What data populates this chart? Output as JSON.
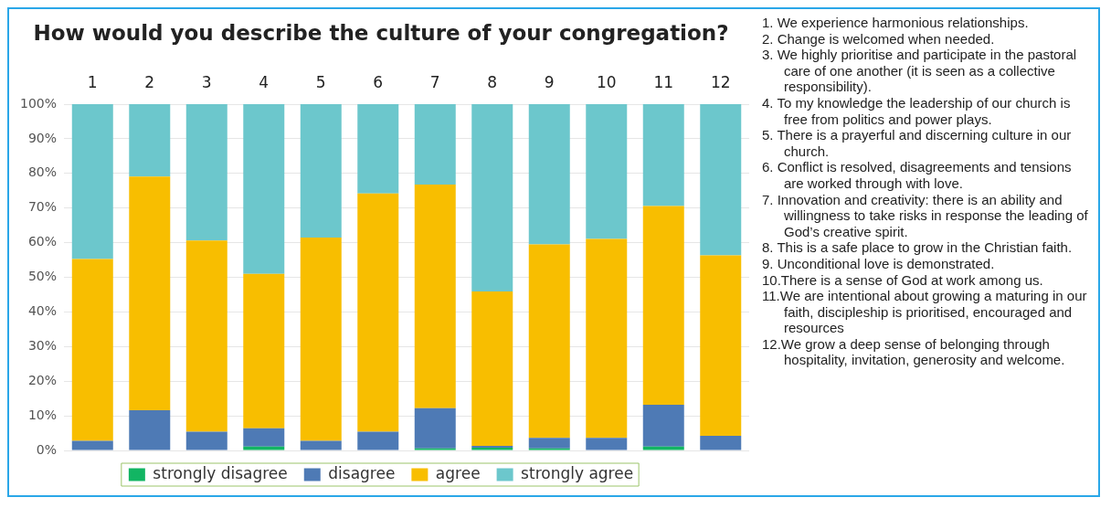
{
  "chart_data": {
    "type": "bar",
    "title": "How would you describe the culture of your congregation?",
    "categories": [
      "1",
      "2",
      "3",
      "4",
      "5",
      "6",
      "7",
      "8",
      "9",
      "10",
      "11",
      "12"
    ],
    "stacked": true,
    "series": [
      {
        "name": "strongly disagree",
        "color": "#12b563",
        "values": [
          0,
          0,
          0,
          1.1,
          0,
          0,
          0.6,
          0.8,
          0.6,
          0,
          1.1,
          0
        ]
      },
      {
        "name": "disagree",
        "color": "#4e7ab5",
        "values": [
          2.8,
          11.6,
          5.4,
          5.3,
          2.8,
          5.4,
          11.6,
          0.5,
          3.0,
          3.6,
          12.1,
          4.2
        ]
      },
      {
        "name": "agree",
        "color": "#f8be00",
        "values": [
          52.5,
          67.5,
          55.2,
          44.6,
          58.7,
          68.8,
          64.6,
          44.6,
          55.9,
          57.5,
          57.4,
          52.1
        ]
      },
      {
        "name": "strongly agree",
        "color": "#6cc7cc",
        "values": [
          44.7,
          20.9,
          39.4,
          49.0,
          38.5,
          25.8,
          23.2,
          54.1,
          40.5,
          38.9,
          29.4,
          43.7
        ]
      }
    ],
    "ylim": [
      0,
      100
    ],
    "yticks": [
      {
        "value": 0,
        "label": "0%"
      },
      {
        "value": 10,
        "label": "10%"
      },
      {
        "value": 20,
        "label": "20%"
      },
      {
        "value": 30,
        "label": "30%"
      },
      {
        "value": 40,
        "label": "40%"
      },
      {
        "value": 50,
        "label": "50%"
      },
      {
        "value": 60,
        "label": "60%"
      },
      {
        "value": 70,
        "label": "70%"
      },
      {
        "value": 80,
        "label": "80%"
      },
      {
        "value": 90,
        "label": "90%"
      },
      {
        "value": 100,
        "label": "100%"
      }
    ],
    "grid": "y",
    "legend": "bottom",
    "annotations": [
      "1. We experience harmonious relationships.",
      "2. Change is welcomed when needed.",
      "3. We highly prioritise and participate in the pastoral care of one another (it is seen as a collective responsibility).",
      "4. To my knowledge the leadership of our church is free from politics and power plays.",
      "5. There is a prayerful and discerning culture in our church.",
      "6. Conflict is resolved, disagreements and tensions are worked through with love.",
      "7. Innovation and creativity: there is an ability and willingness to take risks in response the leading of God’s creative spirit.",
      "8. This is a safe place to grow in the Christian faith.",
      "9. Unconditional love is demonstrated.",
      "10.There is a sense of God at work among us.",
      "11.We are intentional about growing a maturing in our faith, discipleship is prioritised, encouraged and resources",
      "12.We grow a deep sense of belonging through hospitality, invitation, generosity and welcome."
    ]
  }
}
